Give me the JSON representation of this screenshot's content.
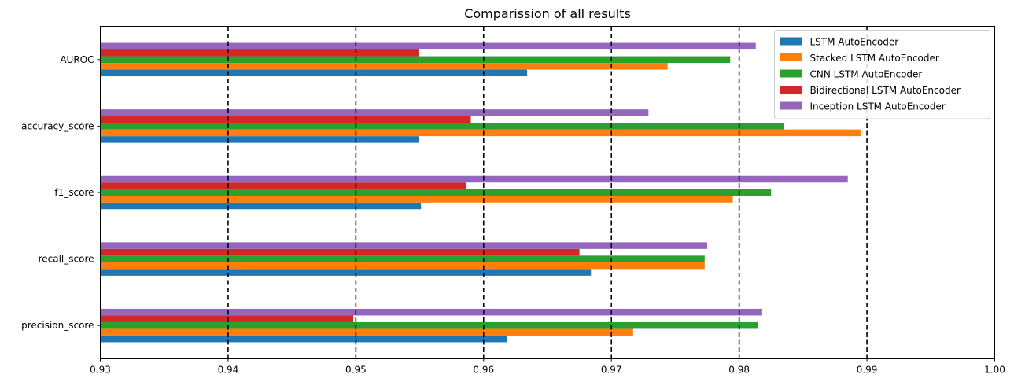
{
  "chart_data": {
    "type": "bar",
    "orientation": "horizontal",
    "title": "Comparission of all results",
    "xlabel": "",
    "ylabel": "",
    "xlim": [
      0.93,
      1.0
    ],
    "xticks": [
      "0.93",
      "0.94",
      "0.95",
      "0.96",
      "0.97",
      "0.98",
      "0.99",
      "1.00"
    ],
    "categories": [
      "precision_score",
      "recall_score",
      "f1_score",
      "accuracy_score",
      "AUROC"
    ],
    "series": [
      {
        "name": "LSTM AutoEncoder",
        "color": "#1f77b4",
        "values": [
          0.9618,
          0.9684,
          0.9551,
          0.9549,
          0.9634
        ]
      },
      {
        "name": "Stacked LSTM AutoEncoder",
        "color": "#ff7f0e",
        "values": [
          0.9717,
          0.9773,
          0.9795,
          0.9895,
          0.9744
        ]
      },
      {
        "name": "CNN LSTM AutoEncoder",
        "color": "#2ca02c",
        "values": [
          0.9815,
          0.9773,
          0.9825,
          0.9835,
          0.9793
        ]
      },
      {
        "name": "Bidirectional LSTM AutoEncoder",
        "color": "#d62728",
        "values": [
          0.9498,
          0.9675,
          0.9586,
          0.959,
          0.9549
        ]
      },
      {
        "name": "Inception LSTM AutoEncoder",
        "color": "#9467bd",
        "values": [
          0.9818,
          0.9775,
          0.9885,
          0.9729,
          0.9813
        ]
      }
    ],
    "vlines": [
      0.94,
      0.95,
      0.96,
      0.97,
      0.98,
      0.99
    ],
    "vline_style": "dashed black",
    "legend_position": "top-right",
    "grid": false
  }
}
